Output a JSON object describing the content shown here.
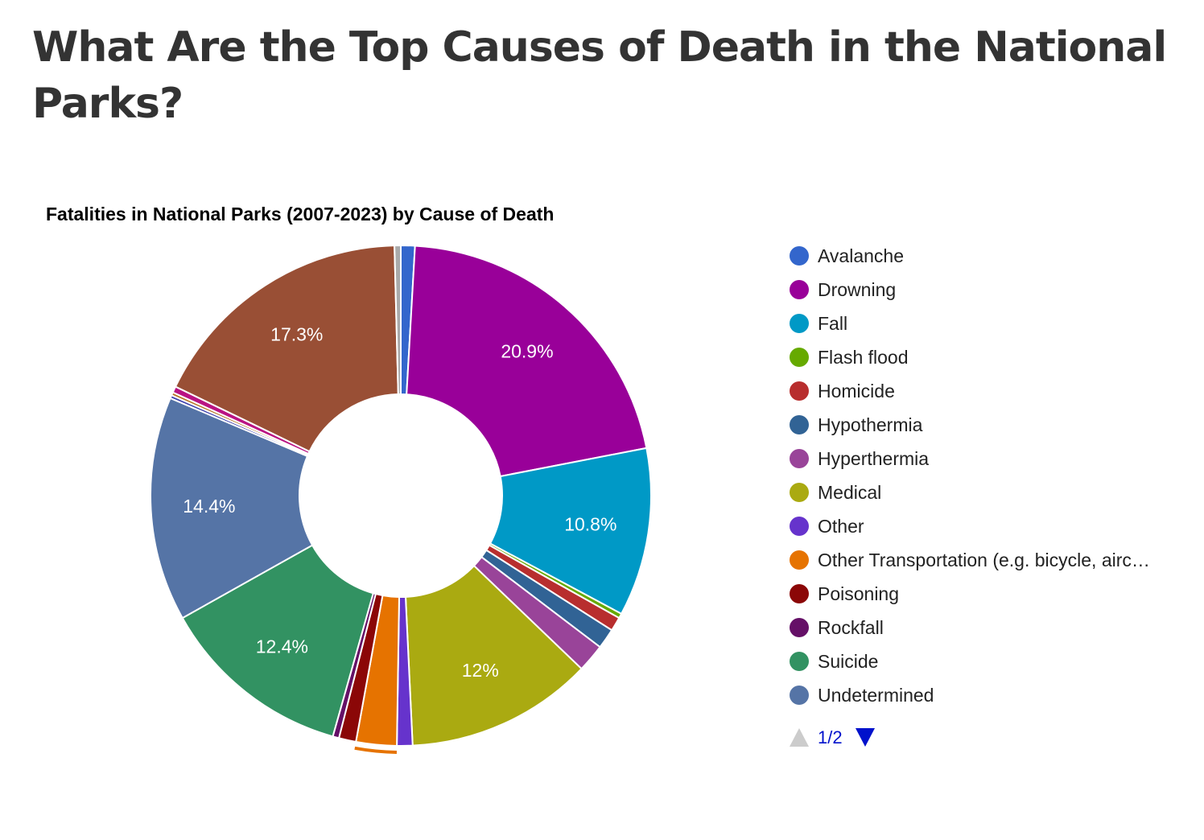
{
  "page": {
    "title": "What Are the Top Causes of Death in the National Parks?"
  },
  "chart_data": {
    "type": "pie",
    "donut": true,
    "title": "Fatalities in National Parks (2007-2023) by Cause of Death",
    "slices": [
      {
        "label": "Avalanche",
        "percent": 0.9,
        "color": "#3366cc"
      },
      {
        "label": "Drowning",
        "percent": 20.9,
        "color": "#990099",
        "data_label": "20.9%"
      },
      {
        "label": "Fall",
        "percent": 10.8,
        "color": "#0099c6",
        "data_label": "10.8%"
      },
      {
        "label": "Flash flood",
        "percent": 0.3,
        "color": "#66aa00"
      },
      {
        "label": "Homicide",
        "percent": 0.9,
        "color": "#b82e2e"
      },
      {
        "label": "Hypothermia",
        "percent": 1.3,
        "color": "#316395"
      },
      {
        "label": "Hyperthermia",
        "percent": 1.8,
        "color": "#994499"
      },
      {
        "label": "Medical",
        "percent": 12.0,
        "color": "#aaaa11",
        "data_label": "12%"
      },
      {
        "label": "Other",
        "percent": 1.0,
        "color": "#6633cc"
      },
      {
        "label": "Other Transportation (e.g. bicycle, aircraft)",
        "legend_label": "Other Transportation (e.g. bicycle, airc…",
        "percent": 2.6,
        "color": "#e67300",
        "highlighted": true
      },
      {
        "label": "Poisoning",
        "percent": 1.1,
        "color": "#8b0707"
      },
      {
        "label": "Rockfall",
        "percent": 0.4,
        "color": "#651067"
      },
      {
        "label": "Suicide",
        "percent": 12.4,
        "color": "#329262",
        "data_label": "12.4%"
      },
      {
        "label": "Undetermined",
        "percent": 14.4,
        "color": "#5574a6",
        "data_label": "14.4%"
      },
      {
        "label": "",
        "percent": 0.2,
        "color": "#3b3eac"
      },
      {
        "label": "",
        "percent": 0.2,
        "color": "#b77322"
      },
      {
        "label": "",
        "percent": 0.4,
        "color": "#b91383"
      },
      {
        "label": "",
        "percent": 17.3,
        "color": "#994f35",
        "data_label": "17.3%"
      },
      {
        "label": "",
        "percent": 0.4,
        "color": "#aaaaaa"
      }
    ],
    "legend": {
      "position": "right",
      "visible_count": 14,
      "pager": {
        "text": "1/2",
        "up_color": "#cccccc",
        "down_color": "#0011cc"
      }
    }
  }
}
